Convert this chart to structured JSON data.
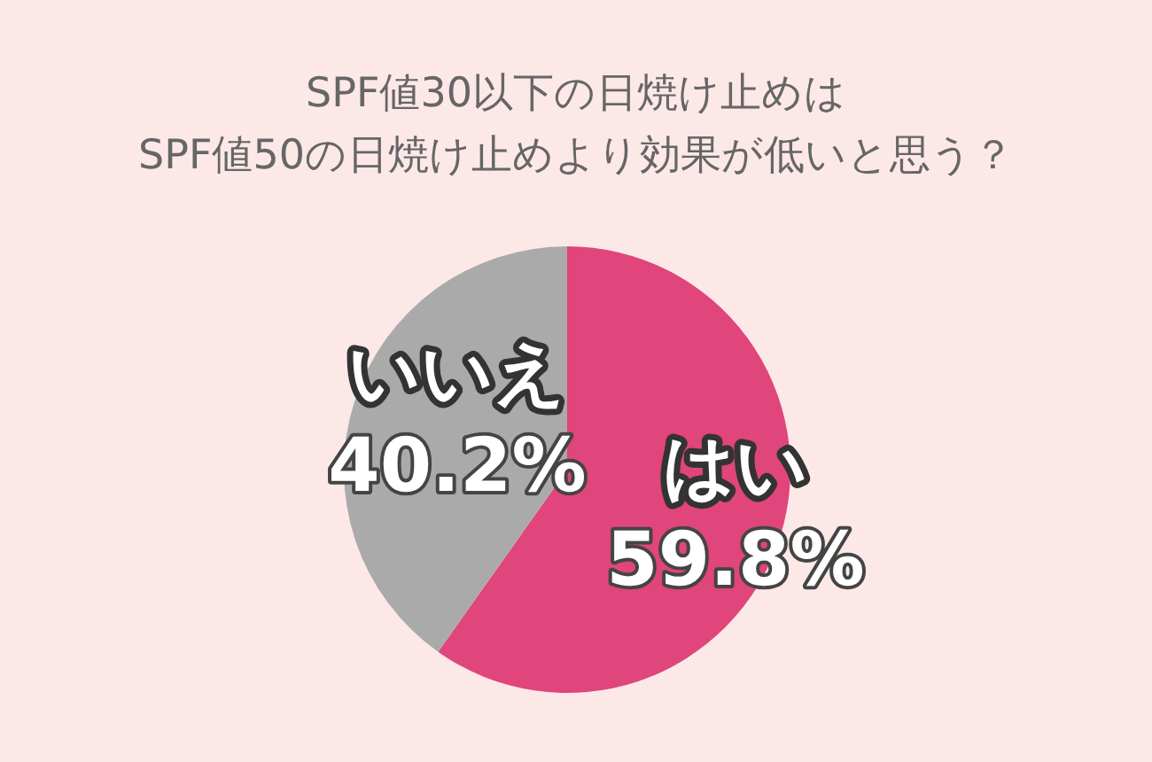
{
  "chart_data": {
    "type": "pie",
    "title": "SPF値30以下の日焼け止めは\nSPF値50の日焼け止めより効果が低いと思う？",
    "categories": [
      "はい",
      "いいえ"
    ],
    "values": [
      59.8,
      40.2
    ],
    "value_labels": [
      "59.8%",
      "40.2%"
    ],
    "colors": [
      "#e0457b",
      "#aaaaaa"
    ],
    "legend": false
  }
}
